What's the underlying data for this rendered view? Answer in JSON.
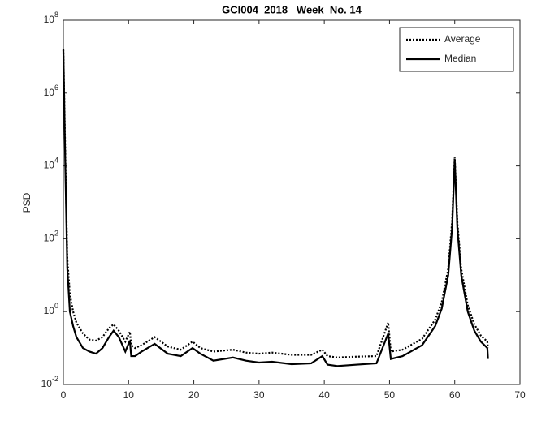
{
  "chart_data": {
    "type": "line",
    "title": "GCI004  2018   Week  No. 14",
    "ylabel": "PSD",
    "log_y": true,
    "legend": "upper right",
    "x": [
      0,
      0.3,
      0.6,
      1,
      1.5,
      2,
      3,
      4,
      5,
      6,
      7,
      7.7,
      8.5,
      9.5,
      10.2,
      10.4,
      11,
      12,
      14,
      16,
      18,
      19.8,
      21,
      23,
      26,
      28,
      30,
      32,
      35,
      38,
      39.7,
      40.5,
      42,
      45,
      48,
      49.8,
      50.2,
      52,
      55,
      57,
      58,
      59,
      59.6,
      60,
      60.4,
      61,
      62,
      63,
      64,
      65,
      65.1
    ],
    "series": [
      {
        "name": "Average",
        "color": "#000000",
        "dash": "dotted",
        "values": [
          16000000,
          20000,
          30,
          3,
          1,
          0.5,
          0.25,
          0.17,
          0.16,
          0.2,
          0.35,
          0.45,
          0.3,
          0.15,
          0.28,
          0.12,
          0.1,
          0.12,
          0.2,
          0.11,
          0.09,
          0.15,
          0.1,
          0.08,
          0.09,
          0.075,
          0.07,
          0.075,
          0.065,
          0.065,
          0.09,
          0.06,
          0.055,
          0.058,
          0.06,
          0.5,
          0.08,
          0.09,
          0.18,
          0.6,
          1.8,
          15,
          300,
          18000,
          300,
          15,
          1.5,
          0.45,
          0.22,
          0.15,
          0.1
        ]
      },
      {
        "name": "Median",
        "color": "#000000",
        "dash": "solid",
        "values": [
          15000000,
          10000,
          16,
          1,
          0.4,
          0.2,
          0.1,
          0.08,
          0.07,
          0.1,
          0.2,
          0.3,
          0.2,
          0.08,
          0.16,
          0.06,
          0.06,
          0.08,
          0.13,
          0.07,
          0.06,
          0.1,
          0.07,
          0.045,
          0.055,
          0.045,
          0.04,
          0.042,
          0.036,
          0.038,
          0.06,
          0.035,
          0.032,
          0.035,
          0.038,
          0.25,
          0.05,
          0.06,
          0.12,
          0.4,
          1.2,
          10,
          200,
          15000,
          200,
          10,
          1,
          0.3,
          0.15,
          0.1,
          0.05
        ]
      }
    ],
    "xlim": [
      0,
      70
    ],
    "xticks": [
      0,
      10,
      20,
      30,
      40,
      50,
      60,
      70
    ],
    "ylim": [
      0.01,
      100000000
    ],
    "yticks": [
      {
        "value": 0.01,
        "label": "10^-2"
      },
      {
        "value": 1,
        "label": "10^0"
      },
      {
        "value": 100,
        "label": "10^2"
      },
      {
        "value": 10000,
        "label": "10^4"
      },
      {
        "value": 1000000,
        "label": "10^6"
      },
      {
        "value": 100000000,
        "label": "10^8"
      }
    ]
  }
}
